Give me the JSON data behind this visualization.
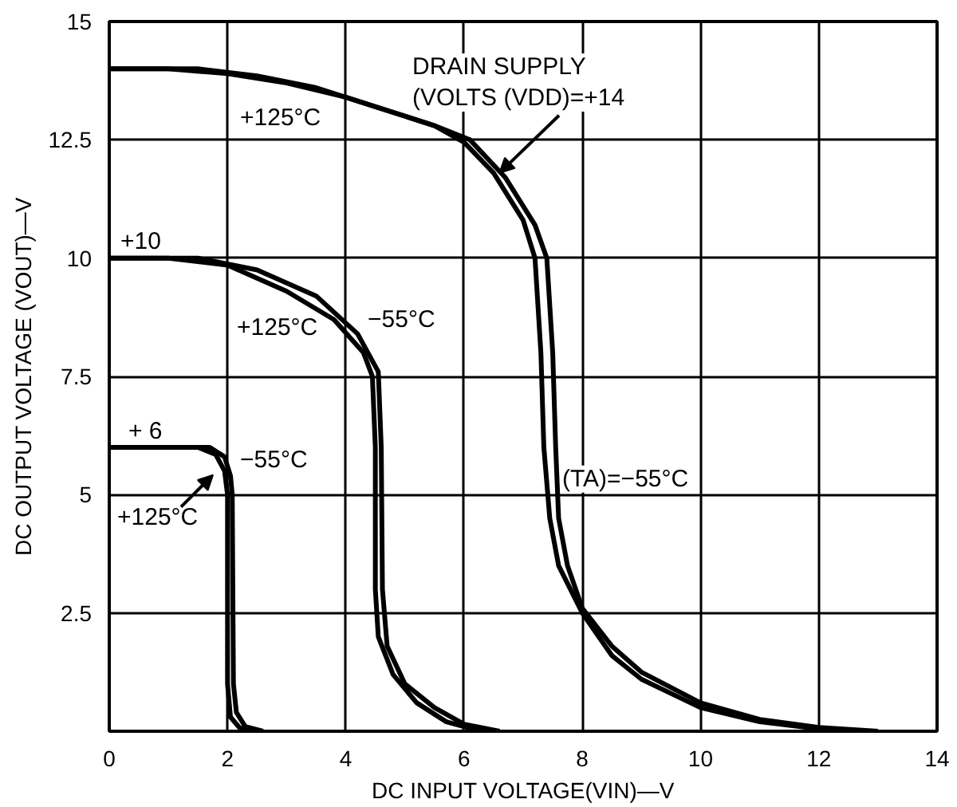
{
  "chart_data": {
    "type": "line",
    "xlabel": "DC INPUT VOLTAGE(VIN)—V",
    "ylabel": "DC OUTPUT VOLTAGE (VOUT)—V",
    "xlim": [
      0,
      14
    ],
    "ylim": [
      0,
      15
    ],
    "xticks": [
      0,
      2,
      4,
      6,
      8,
      10,
      12,
      14
    ],
    "yticks": [
      2.5,
      5,
      7.5,
      10,
      12.5,
      15
    ],
    "grid": true,
    "line_style": "solid",
    "series": [
      {
        "color": "#000000",
        "x": [
          0,
          1,
          2,
          3,
          4,
          5,
          5.5,
          6,
          6.5,
          7,
          7.2,
          7.3,
          7.35,
          7.45,
          7.6,
          8,
          8.5,
          9,
          10,
          11,
          12,
          12.5
        ],
        "values": [
          14,
          14,
          13.9,
          13.7,
          13.4,
          13,
          12.8,
          12.45,
          11.8,
          10.8,
          10,
          8,
          6,
          4.5,
          3.5,
          2.5,
          1.6,
          1.1,
          0.5,
          0.2,
          0.05,
          0
        ]
      },
      {
        "color": "#000000",
        "x": [
          0,
          1.5,
          2.5,
          3.5,
          4.5,
          5.5,
          6.1,
          6.7,
          7.2,
          7.4,
          7.5,
          7.55,
          7.6,
          7.75,
          8,
          8.5,
          9,
          10,
          11,
          12,
          13
        ],
        "values": [
          14,
          14,
          13.85,
          13.6,
          13.2,
          12.8,
          12.5,
          11.7,
          10.7,
          10,
          8,
          6,
          4.5,
          3.5,
          2.6,
          1.8,
          1.25,
          0.6,
          0.25,
          0.08,
          0
        ]
      },
      {
        "color": "#000000",
        "x": [
          0,
          1,
          2,
          3,
          3.8,
          4.3,
          4.45,
          4.5,
          4.5,
          4.55,
          4.8,
          5.2,
          5.7,
          6.2,
          6.5
        ],
        "values": [
          10,
          10,
          9.85,
          9.3,
          8.7,
          8,
          7.5,
          6,
          3,
          2,
          1.2,
          0.6,
          0.2,
          0.03,
          0
        ]
      },
      {
        "color": "#000000",
        "x": [
          0,
          1.5,
          2.5,
          3.5,
          4.2,
          4.55,
          4.6,
          4.62,
          4.7,
          5,
          5.5,
          6,
          6.6
        ],
        "values": [
          10,
          10,
          9.75,
          9.2,
          8.4,
          7.6,
          6,
          3,
          1.8,
          1,
          0.5,
          0.15,
          0
        ]
      },
      {
        "color": "#000000",
        "x": [
          0,
          1.5,
          1.8,
          1.95,
          2,
          2,
          2.05,
          2.2,
          2.4
        ],
        "values": [
          6,
          6,
          5.85,
          5.5,
          5,
          1,
          0.3,
          0.08,
          0
        ]
      },
      {
        "color": "#000000",
        "x": [
          0,
          1.7,
          1.95,
          2.05,
          2.08,
          2.1,
          2.15,
          2.3,
          2.6
        ],
        "values": [
          6,
          6,
          5.8,
          5.4,
          5,
          1,
          0.4,
          0.1,
          0
        ]
      }
    ],
    "annotations": [
      {
        "text": "DRAIN SUPPLY\n(VOLTS (VDD)=+14",
        "x": 6.6,
        "y": 11.8
      },
      "+125°C",
      "+10",
      "+125°C",
      "−55°C",
      "+ 6",
      "−55°C",
      "+125°C",
      "(TA)=−55°C"
    ]
  }
}
